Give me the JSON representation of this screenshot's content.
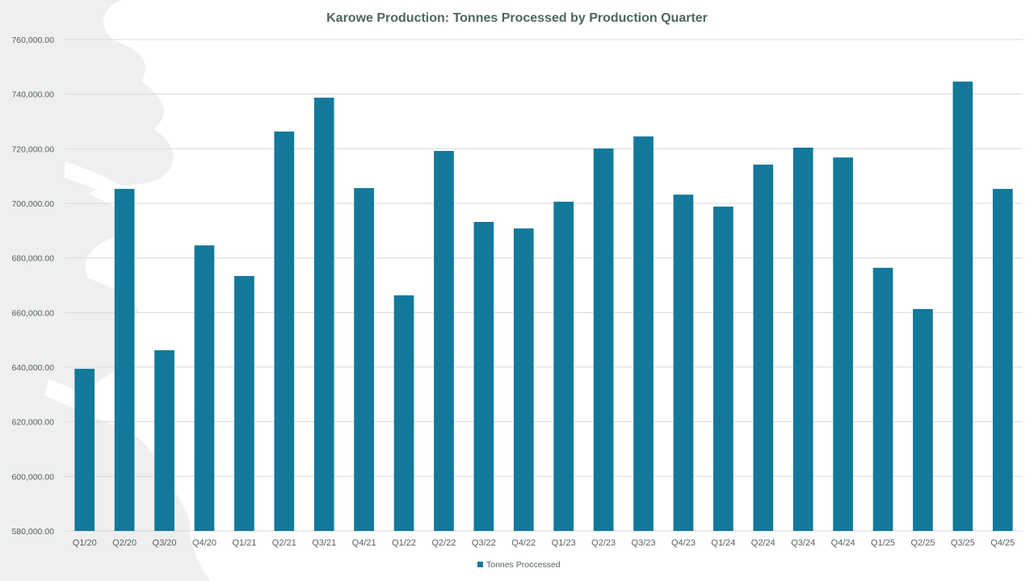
{
  "chart_data": {
    "type": "bar",
    "title": "Karowe Production: Tonnes Processed by Production Quarter",
    "xlabel": "",
    "ylabel": "",
    "ylim": [
      580000,
      760000
    ],
    "ytick_step": 20000,
    "ytick_labels": [
      "580,000.00",
      "600,000.00",
      "620,000.00",
      "640,000.00",
      "660,000.00",
      "680,000.00",
      "700,000.00",
      "720,000.00",
      "740,000.00",
      "760,000.00"
    ],
    "grid": true,
    "legend_position": "bottom-center",
    "categories": [
      "Q1/20",
      "Q2/20",
      "Q3/20",
      "Q4/20",
      "Q1/21",
      "Q2/21",
      "Q3/21",
      "Q4/21",
      "Q1/22",
      "Q2/22",
      "Q3/22",
      "Q4/22",
      "Q1/23",
      "Q2/23",
      "Q3/23",
      "Q4/23",
      "Q1/24",
      "Q2/24",
      "Q3/24",
      "Q4/24",
      "Q1/25",
      "Q2/25",
      "Q3/25",
      "Q4/25"
    ],
    "series": [
      {
        "name": "Tonnes Proccessed",
        "color": "#13799b",
        "values": [
          639400,
          705300,
          646200,
          684600,
          673400,
          726300,
          738700,
          705600,
          666300,
          719200,
          693200,
          690800,
          700600,
          720100,
          724500,
          703200,
          698800,
          714200,
          720400,
          716800,
          676400,
          661300,
          744600,
          705300
        ]
      }
    ]
  },
  "colors": {
    "bar": "#13799b",
    "background_shape": "#efefef",
    "gridline": "#d9d9d9"
  }
}
